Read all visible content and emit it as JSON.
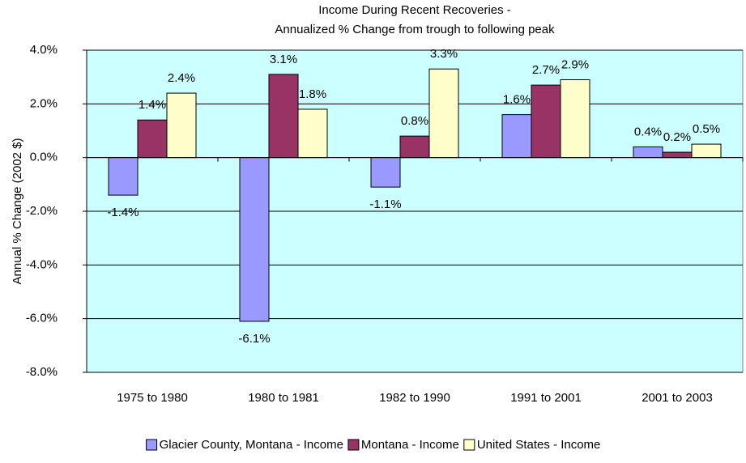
{
  "chart_data": {
    "type": "bar",
    "title": [
      "Income During Recent Recoveries -",
      "Annualized % Change from trough to following peak"
    ],
    "y_label": "Annual % Change (2002 $)",
    "categories": [
      "1975 to 1980",
      "1980 to 1981",
      "1982 to 1990",
      "1991 to 2001",
      "2001 to 2003"
    ],
    "series": [
      {
        "name": "Glacier County, Montana - Income",
        "color": "#9999ff",
        "values": [
          -1.4,
          -6.1,
          -1.1,
          1.6,
          0.4
        ],
        "value_labels": [
          "-1.4%",
          "-6.1%",
          "-1.1%",
          "1.6%",
          "0.4%"
        ]
      },
      {
        "name": "Montana - Income",
        "color": "#993366",
        "values": [
          1.4,
          3.1,
          0.8,
          2.7,
          0.2
        ],
        "value_labels": [
          "1.4%",
          "3.1%",
          "0.8%",
          "2.7%",
          "0.2%"
        ]
      },
      {
        "name": "United States - Income",
        "color": "#ffffcc",
        "values": [
          2.4,
          1.8,
          3.3,
          2.9,
          0.5
        ],
        "value_labels": [
          "2.4%",
          "1.8%",
          "3.3%",
          "2.9%",
          "0.5%"
        ]
      }
    ],
    "ylim": [
      -8,
      4
    ],
    "yticks": [
      {
        "value": -8,
        "label": "-8.0%"
      },
      {
        "value": -6,
        "label": "-6.0%"
      },
      {
        "value": -4,
        "label": "-4.0%"
      },
      {
        "value": -2,
        "label": "-2.0%"
      },
      {
        "value": 0,
        "label": "0.0%"
      },
      {
        "value": 2,
        "label": "2.0%"
      },
      {
        "value": 4,
        "label": "4.0%"
      }
    ],
    "grid": true,
    "plot_background": "#ccffff",
    "legend": "bottom"
  }
}
